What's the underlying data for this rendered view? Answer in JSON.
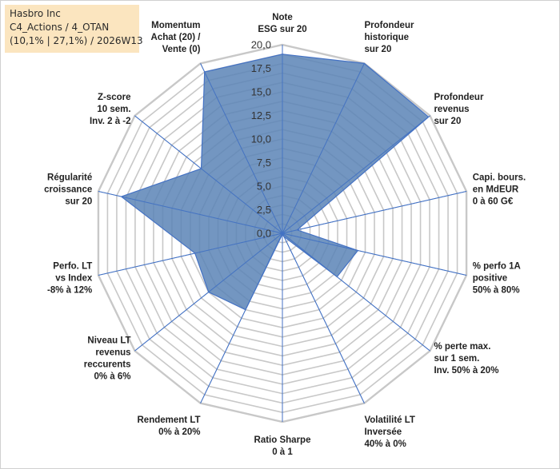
{
  "header": {
    "line1": "Hasbro Inc",
    "line2": "C4_Actions / 4_OTAN",
    "line3": "(10,1% | 27,1%) / 2026W13"
  },
  "chart_data": {
    "type": "radar",
    "title": "Hasbro Inc",
    "range": [
      0,
      20
    ],
    "ticks": [
      "0,0",
      "2,5",
      "5,0",
      "7,5",
      "10,0",
      "12,5",
      "15,0",
      "17,5",
      "20,0"
    ],
    "tick_values": [
      0,
      2.5,
      5,
      7.5,
      10,
      12.5,
      15,
      17.5,
      20
    ],
    "grid": true,
    "fill_color": "#5b84b6",
    "fill_opacity": 0.85,
    "line_color": "#4472c4",
    "grid_color": "#c8c8c8",
    "axes": [
      {
        "name": "Note ESG sur 20",
        "label_lines": [
          "Note",
          "ESG sur 20"
        ],
        "value": 19.0
      },
      {
        "name": "Profondeur historique sur 20",
        "label_lines": [
          "Profondeur",
          "historique",
          "sur 20"
        ],
        "value": 20.0
      },
      {
        "name": "Profondeur revenus sur 20",
        "label_lines": [
          "Profondeur",
          "revenus",
          "sur 20"
        ],
        "value": 19.8
      },
      {
        "name": "Capi. bours. en MdEUR 0 à 60 G€",
        "label_lines": [
          "Capi. bours.",
          "en MdEUR",
          "0 à 60 G€"
        ],
        "value": 1.6
      },
      {
        "name": "% perfo 1A positive 50% à 80%",
        "label_lines": [
          "% perfo 1A",
          "positive",
          "50% à 80%"
        ],
        "value": 8.2
      },
      {
        "name": "% perte max. sur 1 sem. Inv. 50% à 20%",
        "label_lines": [
          "% perte max.",
          "sur 1 sem.",
          "Inv. 50% à 20%"
        ],
        "value": 7.4
      },
      {
        "name": "Volatilité LT Inversée 40% à 0%",
        "label_lines": [
          "Volatilité LT",
          "Inversée",
          "40% à 0%"
        ],
        "value": 0.4
      },
      {
        "name": "Ratio Sharpe 0 à 1",
        "label_lines": [
          "Ratio Sharpe",
          "0 à 1"
        ],
        "value": 0.1
      },
      {
        "name": "Rendement LT 0% à 20%",
        "label_lines": [
          "Rendement LT",
          "0% à 20%"
        ],
        "value": 9.0
      },
      {
        "name": "Niveau LT revenus reccurents 0% à 6%",
        "label_lines": [
          "Niveau LT",
          "revenus",
          "reccurents",
          "0% à 6%"
        ],
        "value": 10.0
      },
      {
        "name": "Perfo. LT vs Index -8% à 12%",
        "label_lines": [
          "Perfo. LT",
          "vs Index",
          "-8% à 12%"
        ],
        "value": 9.5
      },
      {
        "name": "Régularité croissance sur 20",
        "label_lines": [
          "Régularité",
          "croissance",
          "sur 20"
        ],
        "value": 17.5
      },
      {
        "name": "Z-score 10 sem. Inv. 2 à -2",
        "label_lines": [
          "Z-score",
          "10 sem.",
          "Inv. 2 à -2"
        ],
        "value": 11.0
      },
      {
        "name": "Momentum Achat (20) / Vente (0)",
        "label_lines": [
          "Momentum",
          "Achat (20) /",
          "Vente (0)"
        ],
        "value": 19.0
      }
    ]
  }
}
